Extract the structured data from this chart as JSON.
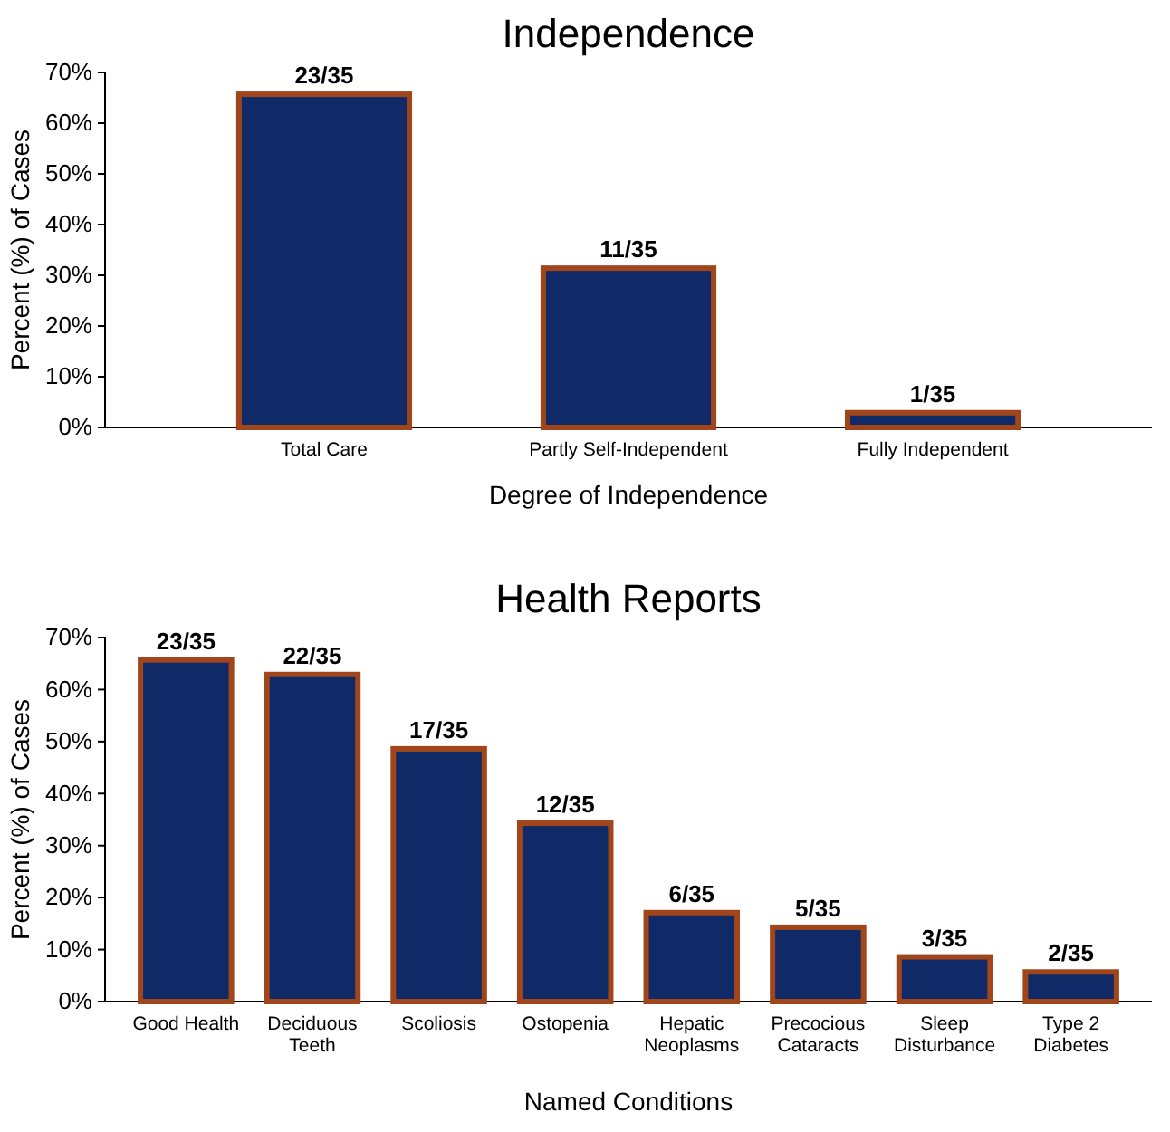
{
  "chart_data": [
    {
      "type": "bar",
      "title": "Independence",
      "xlabel": "Degree of Independence",
      "ylabel": "Percent (%) of Cases",
      "categories": [
        "Total Care",
        "Partly Self-Independent",
        "Fully Independent"
      ],
      "values": [
        65.7,
        31.4,
        2.9
      ],
      "value_labels": [
        "23/35",
        "11/35",
        "1/35"
      ],
      "color": "#0f2a66",
      "ylim": [
        0,
        70
      ],
      "yticks": [
        {
          "value": 0,
          "label": "0%"
        },
        {
          "value": 10,
          "label": "10%"
        },
        {
          "value": 20,
          "label": "20%"
        },
        {
          "value": 30,
          "label": "30%"
        },
        {
          "value": 40,
          "label": "40%"
        },
        {
          "value": 50,
          "label": "50%"
        },
        {
          "value": 60,
          "label": "60%"
        },
        {
          "value": 70,
          "label": "70%"
        }
      ]
    },
    {
      "type": "bar",
      "title": "Health Reports",
      "xlabel": "Named Conditions",
      "ylabel": "Percent (%) of Cases",
      "categories": [
        "Good Health",
        "Deciduous Teeth",
        "Scoliosis",
        "Ostopenia",
        "Hepatic Neoplasms",
        "Precocious Cataracts",
        "Sleep Disturbance",
        "Type 2 Diabetes"
      ],
      "values": [
        65.7,
        62.9,
        48.6,
        34.3,
        17.1,
        14.3,
        8.6,
        5.7
      ],
      "value_labels": [
        "23/35",
        "22/35",
        "17/35",
        "12/35",
        "6/35",
        "5/35",
        "3/35",
        "2/35"
      ],
      "color": "#0f2a66",
      "ylim": [
        0,
        70
      ],
      "yticks": [
        {
          "value": 0,
          "label": "0%"
        },
        {
          "value": 10,
          "label": "10%"
        },
        {
          "value": 20,
          "label": "20%"
        },
        {
          "value": 30,
          "label": "30%"
        },
        {
          "value": 40,
          "label": "40%"
        },
        {
          "value": 50,
          "label": "50%"
        },
        {
          "value": 60,
          "label": "60%"
        },
        {
          "value": 70,
          "label": "70%"
        }
      ]
    }
  ]
}
